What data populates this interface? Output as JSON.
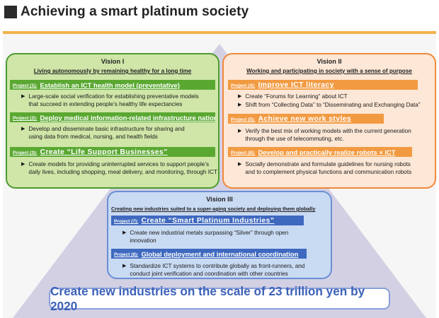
{
  "header": {
    "title": "Achieving a smart platinum society"
  },
  "vision1": {
    "heading": "Vision I",
    "subtitle": "Living autonomously by remaining healthy for a long time",
    "projects": [
      {
        "number": "Project (1):",
        "name": "Establish an ICT health model (preventative)",
        "bullet": "Large-scale social verification for establishing preventative models\nthat succeed in extending people’s healthy life expectancies"
      },
      {
        "number": "Project (2):",
        "name": "Deploy medical information-related infrastructure nationwide",
        "bullet": "Develop and disseminate basic infrastructure for sharing and\nusing data from medical, nursing, and health fields"
      },
      {
        "number": "Project (3):",
        "name": "Create “Life Support Businesses”",
        "bullet": "Create models for providing uninterrupted services to support people’s\ndaily lives, including shopping, meal delivery, and monitoring, through ICT"
      }
    ]
  },
  "vision2": {
    "heading": "Vision II",
    "subtitle": "Working and participating in society with a sense of purpose",
    "projects": [
      {
        "number": "Project (4):",
        "name": "Improve ICT literacy",
        "bullets": [
          "Create “Forums for Learning” about ICT",
          "Shift from “Collecting Data” to “Disseminating and Exchanging Data”"
        ]
      },
      {
        "number": "Project (5):",
        "name": "Achieve new work styles",
        "bullet": "Verify the best mix of working models with the current generation\nthrough the use of telecommuting, etc."
      },
      {
        "number": "Project (6):",
        "name": "Develop and practically realize robots × ICT",
        "bullet": "Socially demonstrate and formulate guidelines for nursing robots\nand to complement physical functions and communication robots"
      }
    ]
  },
  "vision3": {
    "heading": "Vision III",
    "subtitle": "Creating new industries suited to a super-aging society and deploying them globally",
    "projects": [
      {
        "number": "Project (7):",
        "name": "Create “Smart Platinum Industries”",
        "bullet": "Create new industrial metals surpassing “Silver” through open\ninnovation"
      },
      {
        "number": "Project (8):",
        "name": "Global deployment and international coordination",
        "bullet": "Standardize ICT systems to contribute globally as front-runners, and\nconduct joint verification and coordination with other countries"
      }
    ]
  },
  "footer": {
    "goal": "Create new industries on the scale of 23 trillion yen by 2020"
  },
  "colors": {
    "vision1": "#cfe6a8",
    "vision2": "#fde7d6",
    "vision3": "#c9daf3",
    "accent_orange": "#f3b24a",
    "pyramid": "#b7b3d1"
  }
}
